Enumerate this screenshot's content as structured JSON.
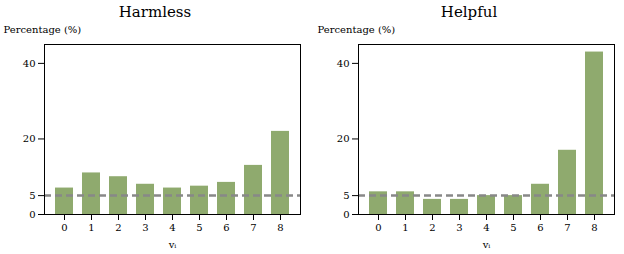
{
  "chart_data": [
    {
      "type": "bar",
      "title": "Harmless",
      "categories": [
        0,
        1,
        2,
        3,
        4,
        5,
        6,
        7,
        8
      ],
      "values": [
        7.0,
        11.0,
        10.0,
        8.0,
        7.0,
        7.5,
        8.5,
        13.0,
        22.0
      ],
      "color": "#8faa6e",
      "xlabel": "vᵢ",
      "ylabel": "Percentage (%)",
      "ylim": [
        0,
        45
      ],
      "yticks": [
        0,
        5,
        20,
        40
      ],
      "reference_line": {
        "value": 5.0,
        "color": "#888888",
        "line_style": "dashed"
      },
      "grid": false
    },
    {
      "type": "bar",
      "title": "Helpful",
      "categories": [
        0,
        1,
        2,
        3,
        4,
        5,
        6,
        7,
        8
      ],
      "values": [
        6.0,
        6.0,
        4.0,
        4.0,
        5.0,
        5.0,
        8.0,
        17.0,
        43.0
      ],
      "color": "#8faa6e",
      "xlabel": "vᵢ",
      "ylabel": "Percentage (%)",
      "ylim": [
        0,
        45
      ],
      "yticks": [
        0,
        5,
        20,
        40
      ],
      "reference_line": {
        "value": 5.0,
        "color": "#888888",
        "line_style": "dashed"
      },
      "grid": false
    }
  ]
}
